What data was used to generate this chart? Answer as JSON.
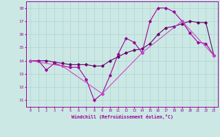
{
  "xlabel": "Windchill (Refroidissement éolien,°C)",
  "xlim": [
    -0.5,
    23.5
  ],
  "ylim": [
    10.5,
    18.5
  ],
  "xticks": [
    0,
    1,
    2,
    3,
    4,
    5,
    6,
    7,
    8,
    9,
    10,
    11,
    12,
    13,
    14,
    15,
    16,
    17,
    18,
    19,
    20,
    21,
    22,
    23
  ],
  "yticks": [
    11,
    12,
    13,
    14,
    15,
    16,
    17,
    18
  ],
  "bg_color": "#cce8e4",
  "grid_color": "#aad4d0",
  "line_color1": "#990099",
  "line_color2": "#660066",
  "line_color3": "#cc44cc",
  "series1_x": [
    0,
    1,
    2,
    3,
    4,
    5,
    6,
    7,
    8,
    9,
    10,
    11,
    12,
    13,
    14,
    15,
    16,
    17,
    18,
    19,
    20,
    21,
    22,
    23
  ],
  "series1_y": [
    14.0,
    14.0,
    13.3,
    13.8,
    13.6,
    13.5,
    13.5,
    12.6,
    11.0,
    11.5,
    12.9,
    14.5,
    15.7,
    15.4,
    14.6,
    17.0,
    18.0,
    18.0,
    17.7,
    17.0,
    16.1,
    15.4,
    15.3,
    14.4
  ],
  "series2_x": [
    0,
    1,
    2,
    3,
    4,
    5,
    6,
    7,
    8,
    9,
    10,
    11,
    12,
    13,
    14,
    15,
    16,
    17,
    18,
    19,
    20,
    21,
    22,
    23
  ],
  "series2_y": [
    14.0,
    14.0,
    14.0,
    13.9,
    13.8,
    13.7,
    13.7,
    13.7,
    13.6,
    13.6,
    14.0,
    14.3,
    14.6,
    14.8,
    14.9,
    15.3,
    16.0,
    16.5,
    16.6,
    16.8,
    17.0,
    16.9,
    16.9,
    14.4
  ],
  "series3_x": [
    0,
    4,
    9,
    14,
    19,
    23
  ],
  "series3_y": [
    14.0,
    13.6,
    11.5,
    14.6,
    17.0,
    14.4
  ]
}
